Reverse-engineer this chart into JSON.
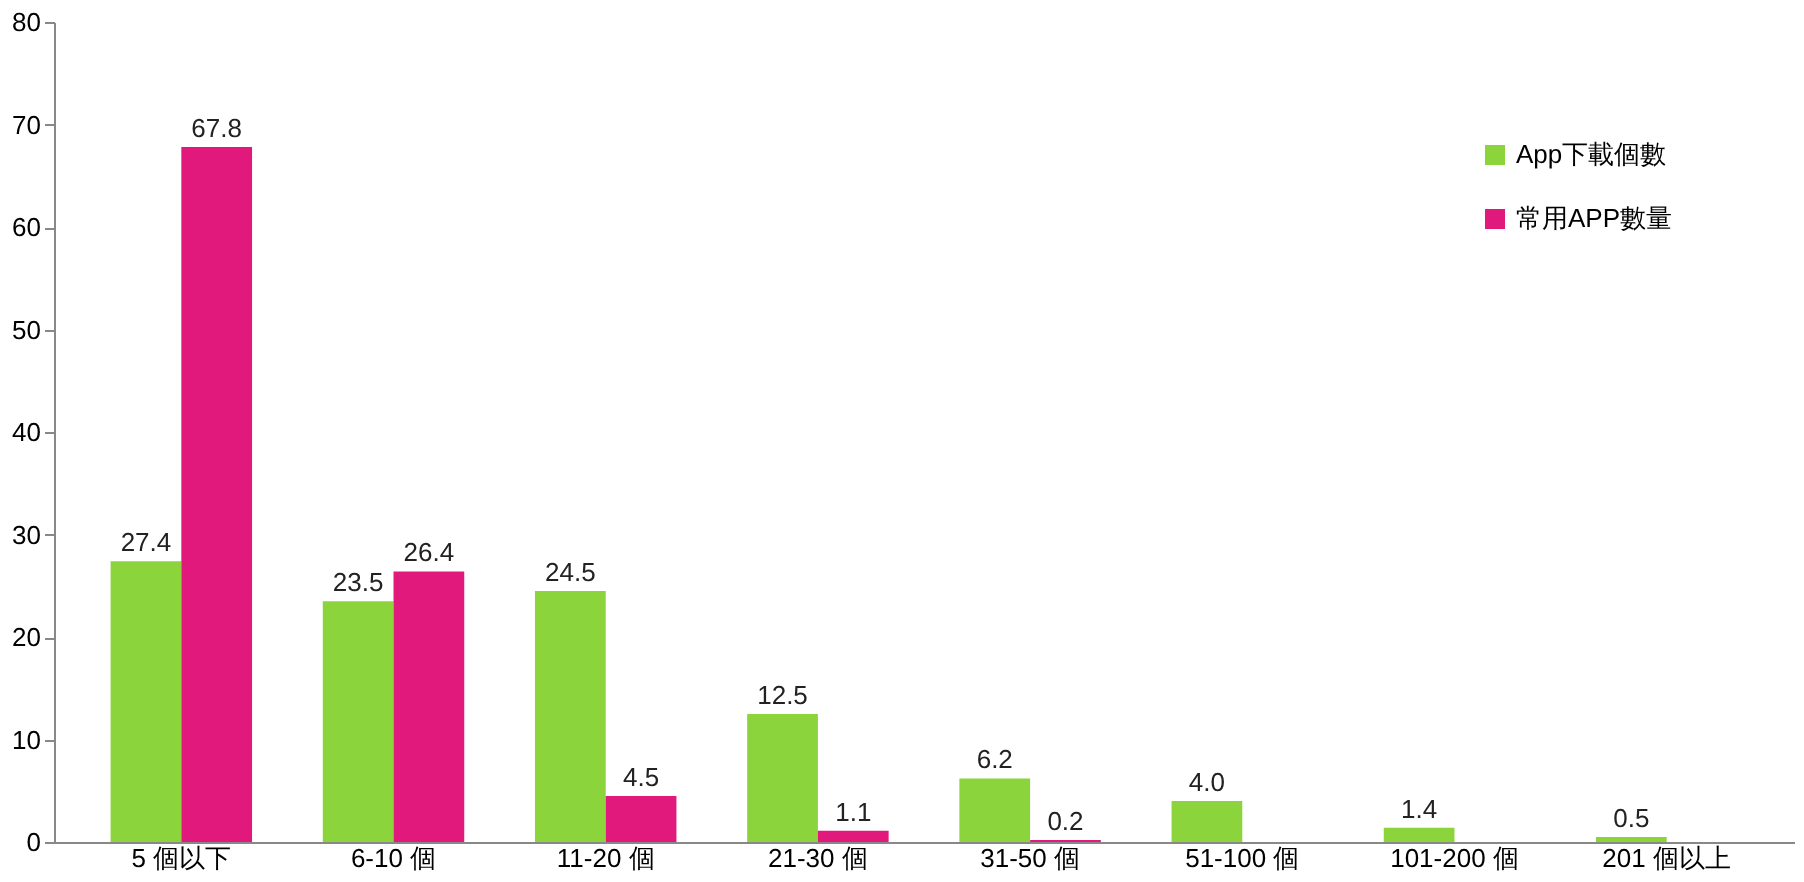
{
  "chart_data": {
    "type": "bar",
    "categories": [
      "5 個以下",
      "6-10 個",
      "11-20 個",
      "21-30 個",
      "31-50 個",
      "51-100 個",
      "101-200 個",
      "201 個以上"
    ],
    "series": [
      {
        "name": "App下載個數",
        "color": "#8cd43c",
        "values": [
          27.4,
          23.5,
          24.5,
          12.5,
          6.2,
          4.0,
          1.4,
          0.5
        ],
        "value_labels": [
          "27.4",
          "23.5",
          "24.5",
          "12.5",
          "6.2",
          "4.0",
          "1.4",
          "0.5"
        ]
      },
      {
        "name": "常用APP數量",
        "color": "#e2197c",
        "values": [
          67.8,
          26.4,
          4.5,
          1.1,
          0.2,
          null,
          null,
          null
        ],
        "value_labels": [
          "67.8",
          "26.4",
          "4.5",
          "1.1",
          "0.2",
          null,
          null,
          null
        ]
      }
    ],
    "ylim": [
      0,
      80
    ],
    "yticks": [
      0,
      10,
      20,
      30,
      40,
      50,
      60,
      70,
      80
    ],
    "grid": false,
    "legend": "top right"
  }
}
